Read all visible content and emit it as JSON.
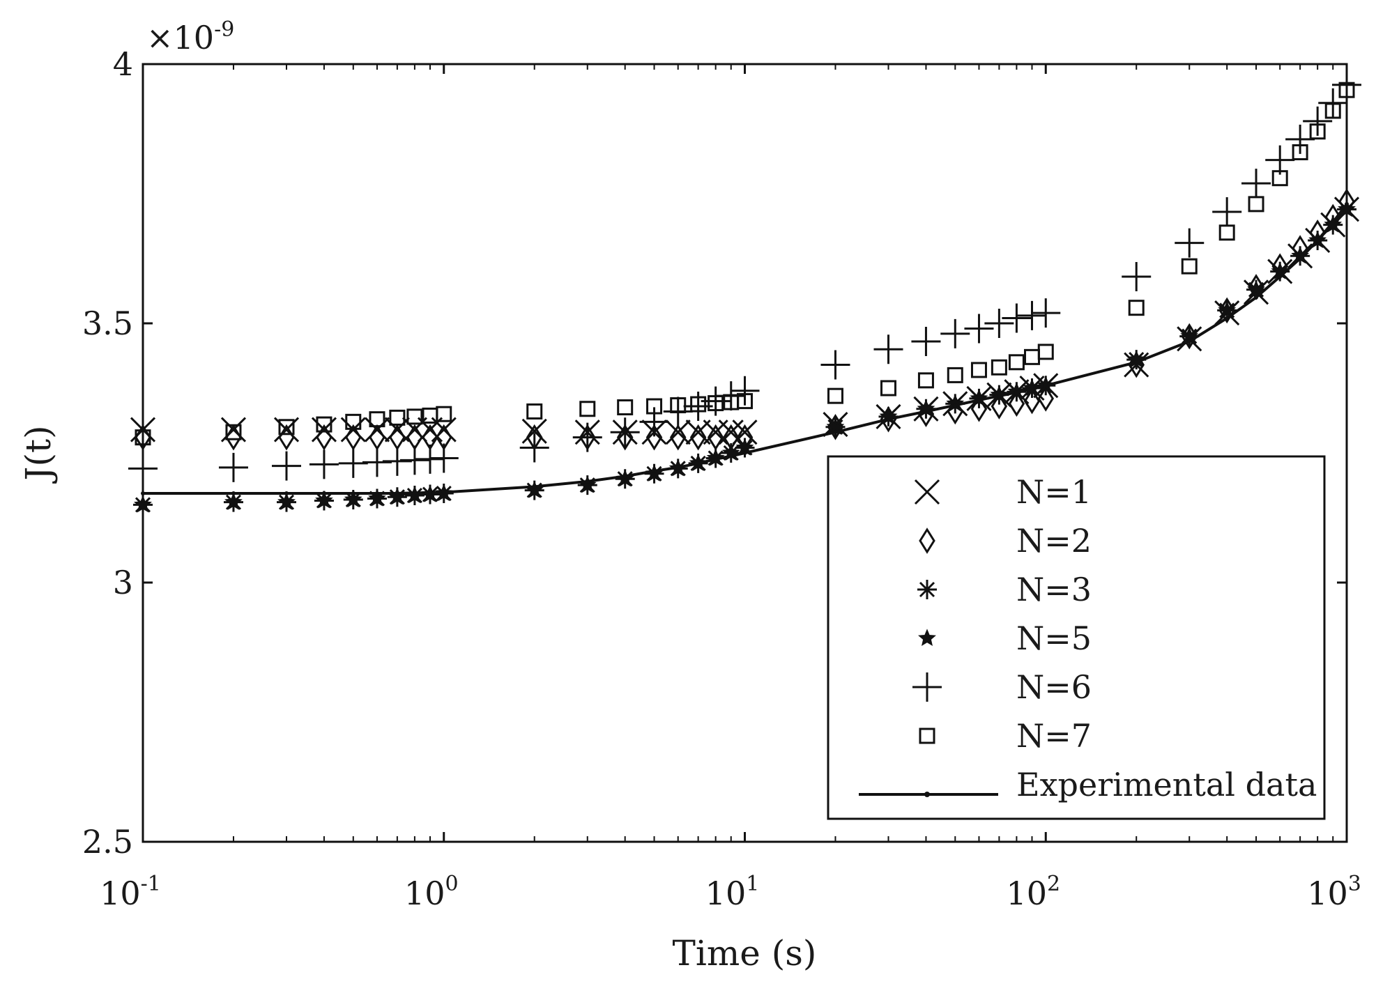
{
  "chart_data": {
    "type": "scatter",
    "title": "",
    "xlabel": "Time (s)",
    "ylabel": "J(t)",
    "xscale": "log",
    "xlim": [
      0.1,
      1000
    ],
    "ylim": [
      2.5e-09,
      4e-09
    ],
    "y_multiplier_label": "×10",
    "y_multiplier_exponent": "-9",
    "x_ticks": [
      {
        "value": 0.1,
        "base": "10",
        "exp": "-1"
      },
      {
        "value": 1,
        "base": "10",
        "exp": "0"
      },
      {
        "value": 10,
        "base": "10",
        "exp": "1"
      },
      {
        "value": 100,
        "base": "10",
        "exp": "2"
      },
      {
        "value": 1000,
        "base": "10",
        "exp": "3"
      }
    ],
    "y_ticks": [
      {
        "value": 2.5,
        "label": "2.5"
      },
      {
        "value": 3.0,
        "label": "3"
      },
      {
        "value": 3.5,
        "label": "3.5"
      },
      {
        "value": 4.0,
        "label": "4"
      }
    ],
    "grid": false,
    "legend_position": "bottom-right",
    "x": [
      0.1,
      0.2,
      0.3,
      0.4,
      0.5,
      0.6,
      0.7,
      0.8,
      0.9,
      1,
      2,
      3,
      4,
      5,
      6,
      7,
      8,
      9,
      10,
      20,
      30,
      40,
      50,
      60,
      70,
      80,
      90,
      100,
      200,
      300,
      400,
      500,
      600,
      700,
      800,
      900,
      1000
    ],
    "series": [
      {
        "name": "N=1",
        "marker": "x",
        "values": [
          3.295,
          3.295,
          3.295,
          3.295,
          3.295,
          3.295,
          3.295,
          3.295,
          3.295,
          3.295,
          3.292,
          3.29,
          3.29,
          3.29,
          3.29,
          3.29,
          3.29,
          3.29,
          3.29,
          3.305,
          3.32,
          3.335,
          3.345,
          3.355,
          3.362,
          3.368,
          3.375,
          3.38,
          3.42,
          3.47,
          3.52,
          3.56,
          3.6,
          3.63,
          3.66,
          3.69,
          3.72
        ]
      },
      {
        "name": "N=2",
        "marker": "diamond",
        "values": [
          3.28,
          3.28,
          3.28,
          3.28,
          3.28,
          3.28,
          3.28,
          3.28,
          3.28,
          3.28,
          3.28,
          3.28,
          3.28,
          3.28,
          3.28,
          3.28,
          3.28,
          3.28,
          3.28,
          3.3,
          3.315,
          3.325,
          3.33,
          3.335,
          3.34,
          3.345,
          3.35,
          3.355,
          3.42,
          3.475,
          3.525,
          3.57,
          3.61,
          3.645,
          3.675,
          3.705,
          3.735
        ]
      },
      {
        "name": "N=3",
        "marker": "asterisk",
        "values": [
          3.15,
          3.155,
          3.155,
          3.158,
          3.16,
          3.162,
          3.165,
          3.168,
          3.17,
          3.172,
          3.178,
          3.188,
          3.2,
          3.21,
          3.22,
          3.23,
          3.24,
          3.25,
          3.26,
          3.3,
          3.32,
          3.335,
          3.345,
          3.355,
          3.362,
          3.368,
          3.375,
          3.38,
          3.43,
          3.475,
          3.525,
          3.565,
          3.6,
          3.63,
          3.66,
          3.69,
          3.72
        ]
      },
      {
        "name": "N=5",
        "marker": "pentagram",
        "values": [
          3.15,
          3.155,
          3.155,
          3.158,
          3.16,
          3.162,
          3.165,
          3.168,
          3.17,
          3.172,
          3.178,
          3.188,
          3.2,
          3.21,
          3.22,
          3.23,
          3.24,
          3.25,
          3.26,
          3.3,
          3.32,
          3.335,
          3.345,
          3.355,
          3.362,
          3.368,
          3.375,
          3.38,
          3.43,
          3.475,
          3.525,
          3.565,
          3.6,
          3.63,
          3.66,
          3.69,
          3.72
        ]
      },
      {
        "name": "N=6",
        "marker": "plus",
        "values": [
          3.22,
          3.222,
          3.225,
          3.228,
          3.23,
          3.232,
          3.234,
          3.236,
          3.238,
          3.24,
          3.26,
          3.28,
          3.29,
          3.31,
          3.33,
          3.34,
          3.35,
          3.36,
          3.37,
          3.42,
          3.45,
          3.465,
          3.48,
          3.49,
          3.5,
          3.51,
          3.515,
          3.52,
          3.59,
          3.655,
          3.715,
          3.77,
          3.815,
          3.855,
          3.89,
          3.925,
          3.96
        ]
      },
      {
        "name": "N=7",
        "marker": "square",
        "values": [
          3.28,
          3.29,
          3.3,
          3.305,
          3.31,
          3.315,
          3.318,
          3.32,
          3.322,
          3.325,
          3.33,
          3.335,
          3.338,
          3.34,
          3.342,
          3.344,
          3.346,
          3.348,
          3.35,
          3.36,
          3.375,
          3.39,
          3.4,
          3.41,
          3.415,
          3.425,
          3.435,
          3.445,
          3.53,
          3.61,
          3.675,
          3.73,
          3.78,
          3.83,
          3.87,
          3.91,
          3.95
        ]
      },
      {
        "name": "Experimental data",
        "marker": "line",
        "values": [
          3.172,
          3.172,
          3.172,
          3.172,
          3.172,
          3.172,
          3.172,
          3.173,
          3.173,
          3.174,
          3.185,
          3.195,
          3.205,
          3.215,
          3.222,
          3.23,
          3.238,
          3.244,
          3.25,
          3.29,
          3.315,
          3.33,
          3.342,
          3.352,
          3.36,
          3.367,
          3.373,
          3.38,
          3.425,
          3.465,
          3.51,
          3.55,
          3.59,
          3.625,
          3.66,
          3.695,
          3.73
        ]
      }
    ]
  }
}
